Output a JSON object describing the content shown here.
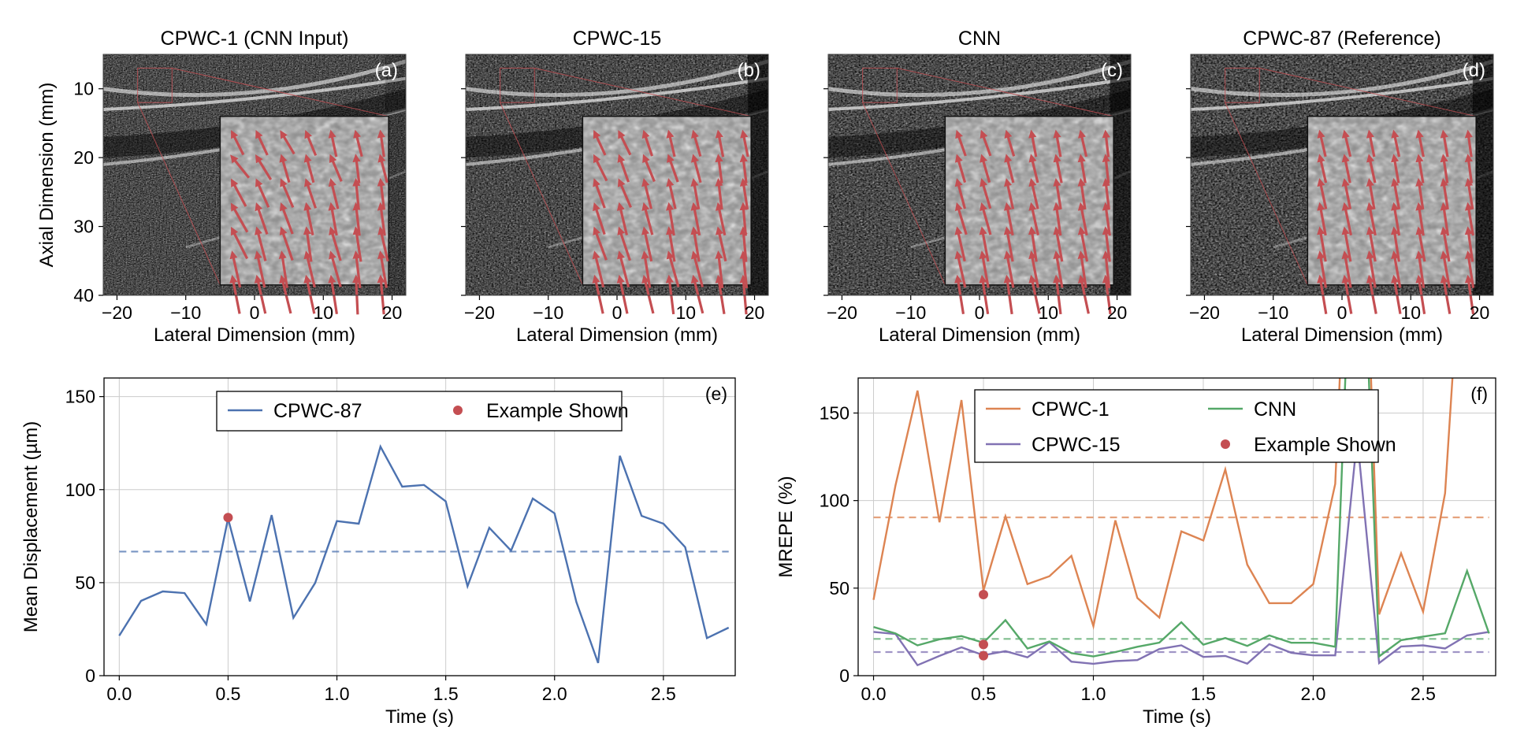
{
  "figure": {
    "image_panels": [
      {
        "title": "CPWC-1 (CNN Input)",
        "label": "(a)",
        "xlabel": "Lateral Dimension (mm)",
        "ylabel": "Axial Dimension (mm)",
        "xticks": [
          "−20",
          "−10",
          "0",
          "10",
          "20"
        ],
        "yticks": [
          "10",
          "20",
          "30",
          "40"
        ],
        "xlim": [
          -22,
          22
        ],
        "ylim": [
          40,
          5
        ],
        "noise": 0.9
      },
      {
        "title": "CPWC-15",
        "label": "(b)",
        "xlabel": "Lateral Dimension (mm)",
        "ylabel": "",
        "xticks": [
          "−20",
          "−10",
          "0",
          "10",
          "20"
        ],
        "yticks": [],
        "xlim": [
          -22,
          22
        ],
        "ylim": [
          40,
          5
        ],
        "noise": 0.55
      },
      {
        "title": "CNN",
        "label": "(c)",
        "xlabel": "Lateral Dimension (mm)",
        "ylabel": "",
        "xticks": [
          "−20",
          "−10",
          "0",
          "10",
          "20"
        ],
        "yticks": [],
        "xlim": [
          -22,
          22
        ],
        "ylim": [
          40,
          5
        ],
        "noise": 0.35
      },
      {
        "title": "CPWC-87 (Reference)",
        "label": "(d)",
        "xlabel": "Lateral Dimension (mm)",
        "ylabel": "",
        "xticks": [
          "−20",
          "−10",
          "0",
          "10",
          "20"
        ],
        "yticks": [],
        "xlim": [
          -22,
          22
        ],
        "ylim": [
          40,
          5
        ],
        "noise": 0.15
      }
    ],
    "zoom_region_mm": {
      "x": [
        -17,
        -12
      ],
      "y": [
        7,
        12
      ]
    },
    "inset_region_mm": {
      "x": [
        -5,
        19.5
      ],
      "y": [
        14,
        38.5
      ]
    },
    "arrow_color": "#c44e52"
  },
  "chart_data": [
    {
      "type": "line",
      "panel_label": "(e)",
      "title": "",
      "xlabel": "Time (s)",
      "ylabel": "Mean Displacement (µm)",
      "xlim": [
        -0.07,
        2.83
      ],
      "ylim": [
        0,
        160
      ],
      "xticks": [
        0.0,
        0.5,
        1.0,
        1.5,
        2.0,
        2.5
      ],
      "xtick_labels": [
        "0.0",
        "0.5",
        "1.0",
        "1.5",
        "2.0",
        "2.5"
      ],
      "yticks": [
        0,
        50,
        100,
        150
      ],
      "ytick_labels": [
        "0",
        "50",
        "100",
        "150"
      ],
      "grid": true,
      "legend": {
        "placement": "top-center",
        "columns": 2,
        "entries": [
          {
            "label": "CPWC-87",
            "kind": "line",
            "color": "#4c72b0"
          },
          {
            "label": "Example Shown",
            "kind": "dot",
            "color": "#c44e52"
          }
        ]
      },
      "x": [
        0.0,
        0.1,
        0.2,
        0.3,
        0.4,
        0.5,
        0.6,
        0.7,
        0.8,
        0.9,
        1.0,
        1.1,
        1.2,
        1.3,
        1.4,
        1.5,
        1.6,
        1.7,
        1.8,
        1.9,
        2.0,
        2.1,
        2.2,
        2.3,
        2.4,
        2.5,
        2.6,
        2.7,
        2.8
      ],
      "series": [
        {
          "name": "CPWC-87",
          "color": "#4c72b0",
          "values": [
            21.5,
            40.2,
            45.3,
            44.4,
            27.6,
            84.5,
            39.9,
            86.3,
            31.1,
            49.8,
            83.1,
            81.7,
            123.1,
            101.6,
            102.5,
            93.7,
            48.1,
            79.5,
            67.2,
            95.2,
            87.3,
            39.6,
            6.8,
            118.2,
            85.9,
            81.7,
            69.1,
            20.2,
            25.8
          ],
          "mean": 66.7
        }
      ],
      "markers": [
        {
          "name": "Example Shown",
          "x": 0.5,
          "y": 85.0,
          "color": "#c44e52"
        }
      ]
    },
    {
      "type": "line",
      "panel_label": "(f)",
      "title": "",
      "xlabel": "Time (s)",
      "ylabel": "MREPE (%)",
      "xlim": [
        -0.07,
        2.83
      ],
      "ylim": [
        0,
        170
      ],
      "xticks": [
        0.0,
        0.5,
        1.0,
        1.5,
        2.0,
        2.5
      ],
      "xtick_labels": [
        "0.0",
        "0.5",
        "1.0",
        "1.5",
        "2.0",
        "2.5"
      ],
      "yticks": [
        0,
        50,
        100,
        150
      ],
      "ytick_labels": [
        "0",
        "50",
        "100",
        "150"
      ],
      "grid": true,
      "legend": {
        "placement": "top-center",
        "columns": 2,
        "entries": [
          {
            "label": "CPWC-1",
            "kind": "line",
            "color": "#dd8452"
          },
          {
            "label": "CPWC-15",
            "kind": "line",
            "color": "#8172b3"
          },
          {
            "label": "CNN",
            "kind": "line",
            "color": "#55a868"
          },
          {
            "label": "Example Shown",
            "kind": "dot",
            "color": "#c44e52"
          }
        ]
      },
      "x": [
        0.0,
        0.1,
        0.2,
        0.3,
        0.4,
        0.5,
        0.6,
        0.7,
        0.8,
        0.9,
        1.0,
        1.1,
        1.2,
        1.3,
        1.4,
        1.5,
        1.6,
        1.7,
        1.8,
        1.9,
        2.0,
        2.1,
        2.2,
        2.3,
        2.4,
        2.5,
        2.6,
        2.7,
        2.8
      ],
      "series": [
        {
          "name": "CPWC-1",
          "color": "#dd8452",
          "values": [
            43.3,
            108.7,
            162.8,
            87.6,
            157.4,
            48.6,
            91.0,
            52.3,
            56.8,
            68.4,
            28.3,
            88.7,
            44.4,
            33.2,
            82.4,
            77.2,
            117.8,
            63.4,
            41.4,
            41.4,
            52.3,
            109.5,
            400,
            35.0,
            69.9,
            36.5,
            104.2,
            300,
            300
          ],
          "mean": 90.4
        },
        {
          "name": "CPWC-15",
          "color": "#8172b3",
          "values": [
            25.0,
            23.8,
            6.0,
            11.3,
            16.2,
            11.7,
            14.0,
            10.5,
            19.2,
            8.0,
            6.8,
            8.3,
            8.9,
            15.2,
            17.3,
            10.7,
            11.3,
            6.9,
            18.0,
            13.1,
            11.6,
            11.6,
            136,
            7.2,
            16.7,
            17.3,
            15.5,
            23.0,
            25.0
          ],
          "mean": 13.5
        },
        {
          "name": "CNN",
          "color": "#55a868",
          "values": [
            27.8,
            24.1,
            17.3,
            20.8,
            22.6,
            18.8,
            31.7,
            15.5,
            19.5,
            12.9,
            11.0,
            13.5,
            16.5,
            18.9,
            30.5,
            17.7,
            21.5,
            17.0,
            23.0,
            18.8,
            18.8,
            16.5,
            350,
            11.0,
            20.3,
            22.3,
            24.2,
            59.8,
            24.1
          ],
          "mean": 21.0
        }
      ],
      "markers": [
        {
          "name": "Example Shown",
          "x": 0.5,
          "y": 46.3,
          "color": "#c44e52"
        },
        {
          "name": "Example Shown",
          "x": 0.5,
          "y": 17.8,
          "color": "#c44e52"
        },
        {
          "name": "Example Shown",
          "x": 0.5,
          "y": 11.4,
          "color": "#c44e52"
        }
      ]
    }
  ]
}
